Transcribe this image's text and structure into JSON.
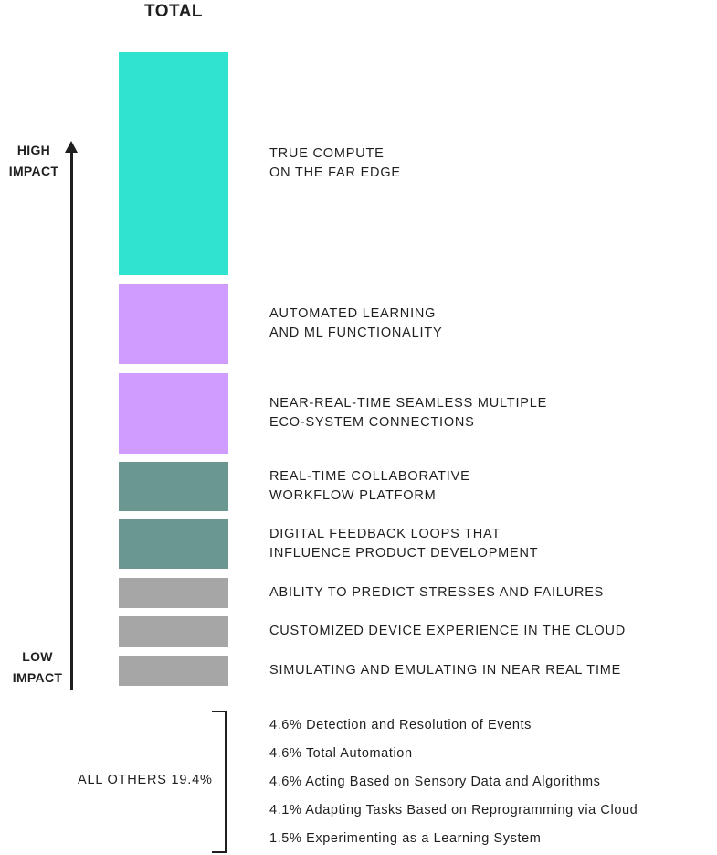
{
  "chart_data": {
    "type": "bar",
    "title": "TOTAL",
    "axis": {
      "high_label": "HIGH\nIMPACT",
      "low_label": "LOW\nIMPACT"
    },
    "categories": [
      "TRUE COMPUTE\nON THE FAR EDGE",
      "AUTOMATED LEARNING\nAND ML FUNCTIONALITY",
      "NEAR-REAL-TIME SEAMLESS MULTIPLE\nECO-SYSTEM CONNECTIONS",
      "REAL-TIME COLLABORATIVE\nWORKFLOW PLATFORM",
      "DIGITAL FEEDBACK LOOPS THAT\nINFLUENCE PRODUCT DEVELOPMENT",
      "ABILITY TO PREDICT STRESSES AND FAILURES",
      "CUSTOMIZED DEVICE EXPERIENCE IN THE CLOUD",
      "SIMULATING AND EMULATING IN NEAR REAL TIME"
    ],
    "values": [
      25.0,
      9.0,
      9.0,
      5.5,
      5.5,
      3.4,
      3.4,
      3.4
    ],
    "colors": [
      "#30e3d0",
      "#d19cff",
      "#d19cff",
      "#6a9890",
      "#6a9890",
      "#a6a6a6",
      "#a6a6a6",
      "#a6a6a6"
    ],
    "others": {
      "label": "ALL OTHERS 19.4%",
      "items": [
        "4.6% Detection and Resolution of Events",
        "4.6% Total Automation",
        "4.6% Acting Based on Sensory Data and Algorithms",
        "4.1% Adapting Tasks Based on Reprogramming via Cloud",
        "1.5% Experimenting as a Learning System"
      ]
    }
  }
}
